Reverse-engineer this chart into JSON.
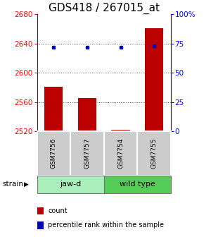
{
  "title": "GDS418 / 267015_at",
  "samples": [
    "GSM7756",
    "GSM7757",
    "GSM7754",
    "GSM7755"
  ],
  "counts": [
    2581,
    2566,
    2522,
    2661
  ],
  "percentiles": [
    72,
    72,
    72,
    73
  ],
  "ylim_left": [
    2520,
    2680
  ],
  "ylim_right": [
    0,
    100
  ],
  "yticks_left": [
    2520,
    2560,
    2600,
    2640,
    2680
  ],
  "yticks_right": [
    0,
    25,
    50,
    75,
    100
  ],
  "ytick_labels_right": [
    "0",
    "25",
    "50",
    "75",
    "100%"
  ],
  "bar_color": "#bb0000",
  "dot_color": "#0000bb",
  "groups": [
    {
      "label": "jaw-d",
      "indices": [
        0,
        1
      ],
      "color": "#aaeebb"
    },
    {
      "label": "wild type",
      "indices": [
        2,
        3
      ],
      "color": "#55cc55"
    }
  ],
  "group_row_label": "strain",
  "legend_items": [
    {
      "color": "#bb0000",
      "label": "count"
    },
    {
      "color": "#0000bb",
      "label": "percentile rank within the sample"
    }
  ],
  "bar_width": 0.55,
  "background_color": "#ffffff",
  "sample_box_color": "#cccccc",
  "title_fontsize": 11,
  "tick_fontsize": 7.5,
  "sample_fontsize": 6.5,
  "group_fontsize": 8,
  "legend_fontsize": 7
}
